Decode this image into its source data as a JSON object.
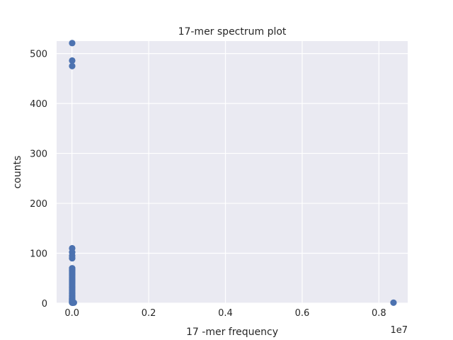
{
  "chart_data": {
    "type": "scatter",
    "title": "17-mer spectrum plot",
    "xlabel": "17 -mer frequency",
    "ylabel": "counts",
    "x_offset_label": "1e7",
    "xlim": [
      -0.04,
      0.875
    ],
    "ylim": [
      0,
      525
    ],
    "x_ticks": [
      0.0,
      0.2,
      0.4,
      0.6,
      0.8
    ],
    "x_tick_labels": [
      "0.0",
      "0.2",
      "0.4",
      "0.6",
      "0.8"
    ],
    "y_ticks": [
      0,
      100,
      200,
      300,
      400,
      500
    ],
    "y_tick_labels": [
      "0",
      "100",
      "200",
      "300",
      "400",
      "500"
    ],
    "grid": true,
    "colors": {
      "background": "#eaeaf2",
      "grid": "#ffffff",
      "marker": "#4c72b0"
    },
    "x": [
      0.0005,
      0.0005,
      0.0005,
      0.0005,
      0.0005,
      0.0005,
      0.0005,
      0.0005,
      0.0005,
      0.0005,
      0.0005,
      0.0005,
      0.0005,
      0.0005,
      0.0005,
      0.0005,
      0.0005,
      0.0005,
      0.0005,
      0.0005,
      0.0005,
      0.0005,
      0.0005,
      0.0005,
      0.0005,
      0.0005,
      0.0005,
      0.0005,
      0.0005,
      0.0005,
      0.0005,
      0.0005,
      0.0005,
      0.0005,
      0.0005,
      0.0005,
      0.0005,
      0.0005,
      0.0005,
      0.0005,
      0.001,
      0.0015,
      0.002,
      0.003,
      0.005,
      0.838
    ],
    "y": [
      521,
      486,
      475,
      110,
      102,
      95,
      90,
      70,
      67,
      64,
      61,
      58,
      55,
      52,
      49,
      46,
      43,
      40,
      37,
      34,
      31,
      28,
      25,
      22,
      19,
      16,
      14,
      12,
      10,
      9,
      8,
      7,
      6,
      5,
      4,
      3,
      2,
      1,
      1,
      2,
      1,
      1,
      1,
      1,
      1,
      1
    ]
  }
}
